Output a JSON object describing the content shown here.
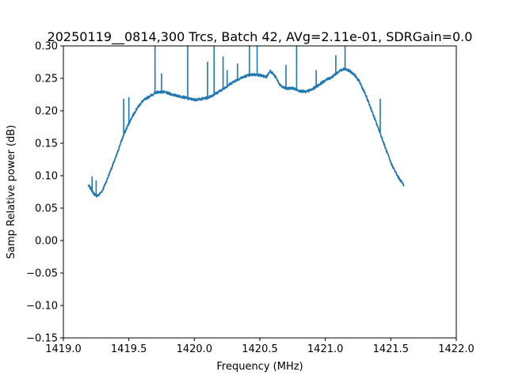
{
  "chart_data": {
    "type": "line",
    "title": "20250119__0814,300 Trcs, Batch 42, AVg=2.11e-01, SDRGain=0.0",
    "xlabel": "Frequency (MHz)",
    "ylabel": "Samp Relative power (dB)",
    "xlim": [
      1419.0,
      1422.0
    ],
    "ylim": [
      -0.15,
      0.3
    ],
    "xticks": [
      1419.0,
      1419.5,
      1420.0,
      1420.5,
      1421.0,
      1421.5,
      1422.0
    ],
    "xtick_labels": [
      "1419.0",
      "1419.5",
      "1420.0",
      "1420.5",
      "1421.0",
      "1421.5",
      "1422.0"
    ],
    "yticks": [
      -0.15,
      -0.1,
      -0.05,
      0.0,
      0.05,
      0.1,
      0.15,
      0.2,
      0.25,
      0.3
    ],
    "ytick_labels": [
      "−0.15",
      "−0.10",
      "−0.05",
      "0.00",
      "0.05",
      "0.10",
      "0.15",
      "0.20",
      "0.25",
      "0.30"
    ],
    "grid": false,
    "series": [
      {
        "color": "#1f77b4",
        "x": [
          1419.19,
          1419.21,
          1419.23,
          1419.25,
          1419.27,
          1419.3,
          1419.33,
          1419.36,
          1419.4,
          1419.44,
          1419.48,
          1419.52,
          1419.56,
          1419.6,
          1419.64,
          1419.68,
          1419.72,
          1419.76,
          1419.8,
          1419.85,
          1419.9,
          1419.95,
          1420.0,
          1420.05,
          1420.1,
          1420.15,
          1420.2,
          1420.25,
          1420.3,
          1420.35,
          1420.4,
          1420.45,
          1420.5,
          1420.55,
          1420.58,
          1420.62,
          1420.66,
          1420.7,
          1420.75,
          1420.8,
          1420.85,
          1420.9,
          1420.95,
          1421.0,
          1421.05,
          1421.1,
          1421.14,
          1421.18,
          1421.22,
          1421.26,
          1421.3,
          1421.34,
          1421.38,
          1421.42,
          1421.46,
          1421.5,
          1421.55,
          1421.6
        ],
        "y": [
          0.085,
          0.08,
          0.073,
          0.069,
          0.07,
          0.078,
          0.092,
          0.108,
          0.128,
          0.152,
          0.172,
          0.189,
          0.203,
          0.214,
          0.22,
          0.225,
          0.229,
          0.229,
          0.227,
          0.224,
          0.222,
          0.219,
          0.217,
          0.218,
          0.22,
          0.225,
          0.231,
          0.238,
          0.245,
          0.25,
          0.254,
          0.256,
          0.255,
          0.252,
          0.262,
          0.252,
          0.238,
          0.234,
          0.235,
          0.231,
          0.229,
          0.233,
          0.24,
          0.247,
          0.252,
          0.26,
          0.265,
          0.262,
          0.256,
          0.245,
          0.228,
          0.208,
          0.186,
          0.165,
          0.142,
          0.12,
          0.1,
          0.085
        ]
      }
    ],
    "spikes": [
      {
        "x": 1419.22,
        "y": 0.098
      },
      {
        "x": 1419.25,
        "y": 0.092
      },
      {
        "x": 1419.46,
        "y": 0.218
      },
      {
        "x": 1419.5,
        "y": 0.22
      },
      {
        "x": 1419.7,
        "y": 0.3
      },
      {
        "x": 1419.75,
        "y": 0.257
      },
      {
        "x": 1419.95,
        "y": 0.3
      },
      {
        "x": 1420.1,
        "y": 0.275
      },
      {
        "x": 1420.15,
        "y": 0.3
      },
      {
        "x": 1420.22,
        "y": 0.283
      },
      {
        "x": 1420.25,
        "y": 0.262
      },
      {
        "x": 1420.33,
        "y": 0.272
      },
      {
        "x": 1420.42,
        "y": 0.3
      },
      {
        "x": 1420.48,
        "y": 0.3
      },
      {
        "x": 1420.7,
        "y": 0.27
      },
      {
        "x": 1420.78,
        "y": 0.3
      },
      {
        "x": 1420.93,
        "y": 0.262
      },
      {
        "x": 1421.08,
        "y": 0.285
      },
      {
        "x": 1421.15,
        "y": 0.3
      },
      {
        "x": 1421.42,
        "y": 0.218
      }
    ]
  }
}
